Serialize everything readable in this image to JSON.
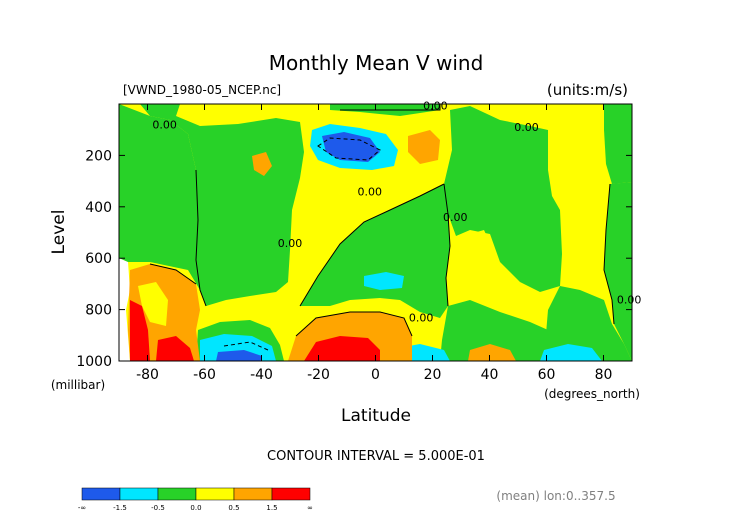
{
  "chart_data": {
    "type": "heatmap",
    "title": "Monthly Mean V wind",
    "file_label": "[VWND_1980-05_NCEP.nc]",
    "units_label": "(units:m/s)",
    "xlabel": "Latitude",
    "xunit": "(degrees_north)",
    "ylabel": "Level",
    "yunit": "(millibar)",
    "xlim": [
      -90,
      90
    ],
    "ylim": [
      1000,
      0
    ],
    "x_ticks": [
      "-80",
      "-60",
      "-40",
      "-20",
      "0",
      "20",
      "40",
      "60",
      "80"
    ],
    "x_tick_values": [
      -80,
      -60,
      -40,
      -20,
      0,
      20,
      40,
      60,
      80
    ],
    "y_ticks": [
      "200",
      "400",
      "600",
      "800",
      "1000"
    ],
    "y_tick_values": [
      200,
      400,
      600,
      800,
      1000
    ],
    "contour_interval_label": "CONTOUR INTERVAL = 5.000E-01",
    "footer_label": "(mean) lon:0..357.5",
    "contour_labels": [
      {
        "text": "0.00",
        "x": 21,
        "y": 5
      },
      {
        "text": "0.00",
        "x": -74,
        "y": 80
      },
      {
        "text": "0.00",
        "x": 53,
        "y": 90
      },
      {
        "text": "0.00",
        "x": -2,
        "y": 340
      },
      {
        "text": "0.00",
        "x": 28,
        "y": 440
      },
      {
        "text": "0.00",
        "x": -30,
        "y": 540
      },
      {
        "text": "0.00",
        "x": 16,
        "y": 830
      },
      {
        "text": "0.00",
        "x": 89,
        "y": 760
      }
    ],
    "colorbar": {
      "colors": [
        "#1e5aeb",
        "#00e6ff",
        "#28d228",
        "#ffff00",
        "#ffa500",
        "#ff0000"
      ],
      "labels": [
        "-∞",
        "-1.5",
        "-0.5",
        "0.0",
        "0.5",
        "1.5",
        "∞"
      ]
    }
  }
}
